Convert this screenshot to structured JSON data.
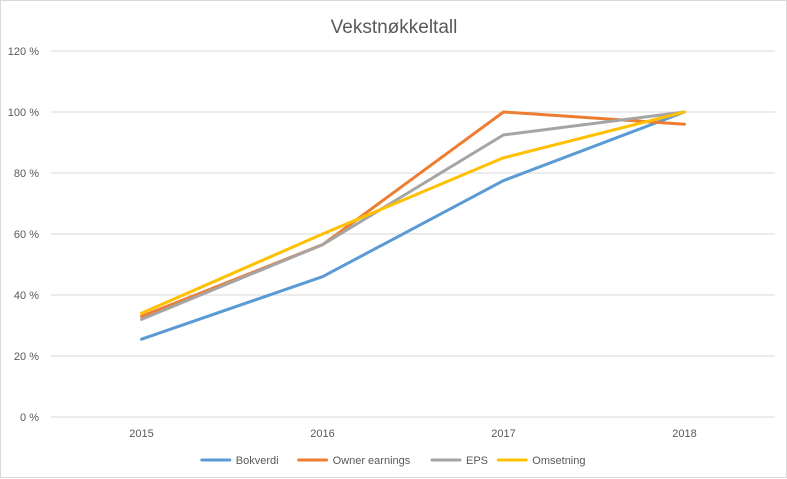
{
  "chart_data": {
    "type": "line",
    "title": "Vekstnøkkeltall",
    "categories": [
      "2015",
      "2016",
      "2017",
      "2018"
    ],
    "y_ticks": [
      "0 %",
      "20 %",
      "40 %",
      "60 %",
      "80 %",
      "100 %",
      "120 %"
    ],
    "ylim": [
      0,
      120
    ],
    "grid": true,
    "legend_position": "bottom",
    "series": [
      {
        "name": "Bokverdi",
        "color": "#5B9BD5",
        "values": [
          25.5,
          46,
          77.5,
          100
        ]
      },
      {
        "name": "Owner earnings",
        "color": "#ED7D31",
        "values": [
          33,
          56.5,
          100,
          96
        ]
      },
      {
        "name": "EPS",
        "color": "#A5A5A5",
        "values": [
          32,
          56.5,
          92.5,
          100
        ]
      },
      {
        "name": "Omsetning",
        "color": "#FFC000",
        "values": [
          34,
          60,
          85,
          100
        ]
      }
    ]
  }
}
